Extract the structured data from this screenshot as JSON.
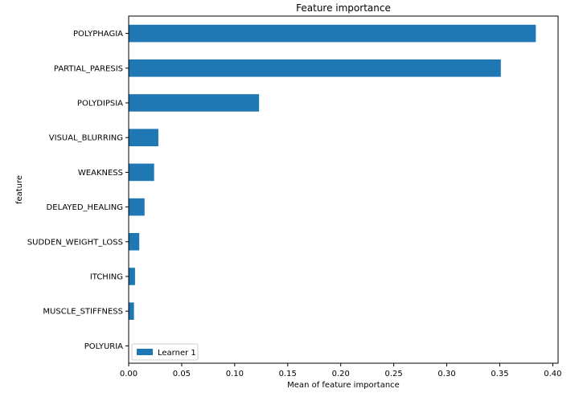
{
  "chart_data": {
    "type": "bar",
    "orientation": "horizontal",
    "title": "Feature importance",
    "xlabel": "Mean of feature importance",
    "ylabel": "feature",
    "categories": [
      "POLYPHAGIA",
      "PARTIAL_PARESIS",
      "POLYDIPSIA",
      "VISUAL_BLURRING",
      "WEAKNESS",
      "DELAYED_HEALING",
      "SUDDEN_WEIGHT_LOSS",
      "ITCHING",
      "MUSCLE_STIFFNESS",
      "POLYURIA"
    ],
    "series": [
      {
        "name": "Learner 1",
        "values": [
          0.384,
          0.351,
          0.123,
          0.028,
          0.024,
          0.015,
          0.01,
          0.006,
          0.005,
          0.0
        ],
        "color": "#1f77b4"
      }
    ],
    "xlim": [
      0,
      0.405
    ],
    "xticks": [
      "0.00",
      "0.05",
      "0.10",
      "0.15",
      "0.20",
      "0.25",
      "0.30",
      "0.35",
      "0.40"
    ],
    "xtick_values": [
      0,
      0.05,
      0.1,
      0.15,
      0.2,
      0.25,
      0.3,
      0.35,
      0.4
    ],
    "grid": false,
    "legend_position": "lower-left"
  }
}
